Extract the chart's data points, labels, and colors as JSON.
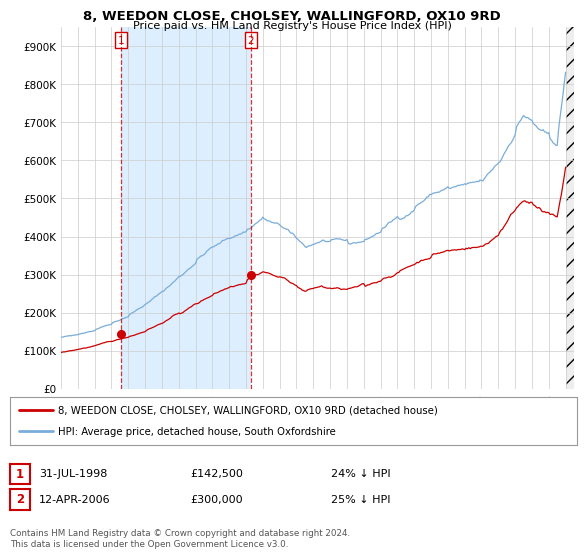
{
  "title": "8, WEEDON CLOSE, CHOLSEY, WALLINGFORD, OX10 9RD",
  "subtitle": "Price paid vs. HM Land Registry's House Price Index (HPI)",
  "legend_line1": "8, WEEDON CLOSE, CHOLSEY, WALLINGFORD, OX10 9RD (detached house)",
  "legend_line2": "HPI: Average price, detached house, South Oxfordshire",
  "sale1_date": "31-JUL-1998",
  "sale1_price": "£142,500",
  "sale1_hpi": "24% ↓ HPI",
  "sale2_date": "12-APR-2006",
  "sale2_price": "£300,000",
  "sale2_hpi": "25% ↓ HPI",
  "footer": "Contains HM Land Registry data © Crown copyright and database right 2024.\nThis data is licensed under the Open Government Licence v3.0.",
  "hpi_color": "#7aadda",
  "price_color": "#cc0000",
  "marker_color": "#cc0000",
  "shade_color": "#ddeeff",
  "grid_color": "#cccccc",
  "background_color": "#ffffff",
  "ylim": [
    0,
    950000
  ],
  "yticks": [
    0,
    100000,
    200000,
    300000,
    400000,
    500000,
    600000,
    700000,
    800000,
    900000
  ],
  "ytick_labels": [
    "£0",
    "£100K",
    "£200K",
    "£300K",
    "£400K",
    "£500K",
    "£600K",
    "£700K",
    "£800K",
    "£900K"
  ],
  "sale1_x": 1998.58,
  "sale1_y": 142500,
  "sale2_x": 2006.28,
  "sale2_y": 300000,
  "xlim": [
    1995.0,
    2025.5
  ],
  "xticks": [
    1995,
    1996,
    1997,
    1998,
    1999,
    2000,
    2001,
    2002,
    2003,
    2004,
    2005,
    2006,
    2007,
    2008,
    2009,
    2010,
    2011,
    2012,
    2013,
    2014,
    2015,
    2016,
    2017,
    2018,
    2019,
    2020,
    2021,
    2022,
    2023,
    2024,
    2025
  ]
}
